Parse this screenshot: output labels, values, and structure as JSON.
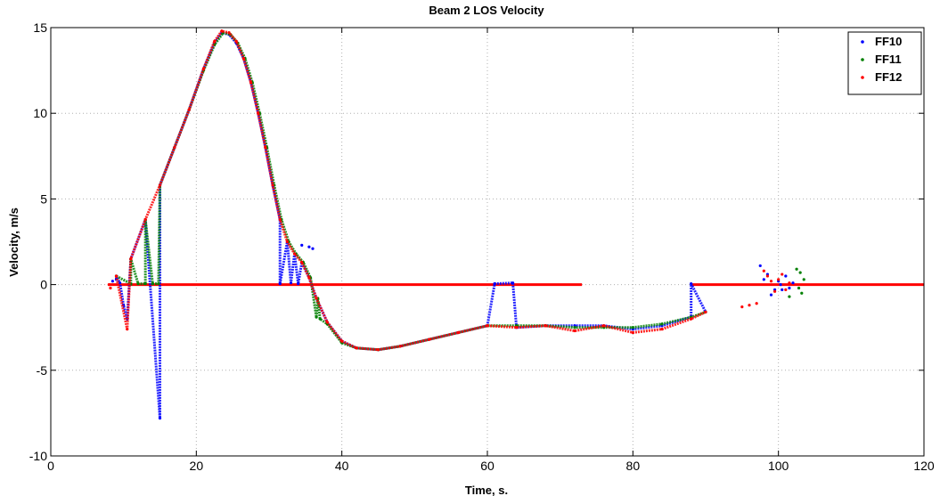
{
  "chart_data": {
    "type": "scatter",
    "title": "Beam 2 LOS Velocity",
    "xlabel": "Time, s.",
    "ylabel": "Velocity, m/s",
    "xlim": [
      0,
      120
    ],
    "ylim": [
      -10,
      15
    ],
    "xticks": [
      0,
      20,
      40,
      60,
      80,
      100,
      120
    ],
    "yticks": [
      -10,
      -5,
      0,
      5,
      10,
      15
    ],
    "grid": true,
    "legend_position": "top-right",
    "series": [
      {
        "name": "FF10",
        "color": "#0000ff",
        "points": [
          [
            8.5,
            0.2
          ],
          [
            9.0,
            0.3
          ],
          [
            9.5,
            0.1
          ],
          [
            10.0,
            -1.2
          ],
          [
            10.5,
            -2.0
          ],
          [
            15.0,
            -7.8
          ],
          [
            9.0,
            0.5
          ],
          [
            11.0,
            1.5
          ],
          [
            13.0,
            3.8
          ],
          [
            15.0,
            5.8
          ],
          [
            17.0,
            8.0
          ],
          [
            19.0,
            10.2
          ],
          [
            21.0,
            12.6
          ],
          [
            22.5,
            14.1
          ],
          [
            23.5,
            14.7
          ],
          [
            24.5,
            14.6
          ],
          [
            25.5,
            14.1
          ],
          [
            26.5,
            13.2
          ],
          [
            27.5,
            11.8
          ],
          [
            28.5,
            10.0
          ],
          [
            29.5,
            8.0
          ],
          [
            30.5,
            5.8
          ],
          [
            31.5,
            3.8
          ],
          [
            32.5,
            2.5
          ],
          [
            33.5,
            1.8
          ],
          [
            34.5,
            1.3
          ],
          [
            35.5,
            0.4
          ],
          [
            36.5,
            -0.8
          ],
          [
            38.0,
            -2.2
          ],
          [
            40.0,
            -3.3
          ],
          [
            42.0,
            -3.7
          ],
          [
            45.0,
            -3.8
          ],
          [
            48.0,
            -3.6
          ],
          [
            52.0,
            -3.2
          ],
          [
            56.0,
            -2.8
          ],
          [
            60.0,
            -2.4
          ],
          [
            64.0,
            -2.5
          ],
          [
            68.0,
            -2.4
          ],
          [
            72.0,
            -2.4
          ],
          [
            76.0,
            -2.4
          ],
          [
            80.0,
            -2.6
          ],
          [
            84.0,
            -2.4
          ],
          [
            88.0,
            -1.9
          ],
          [
            90.0,
            -1.6
          ],
          [
            34.5,
            2.3
          ],
          [
            35.5,
            2.2
          ],
          [
            36.0,
            2.1
          ],
          [
            31.5,
            0.05
          ],
          [
            33.0,
            0.1
          ],
          [
            34.0,
            0.05
          ],
          [
            61.0,
            0.05
          ],
          [
            63.5,
            0.1
          ],
          [
            88.0,
            0.05
          ],
          [
            97.5,
            1.1
          ],
          [
            98.5,
            0.6
          ],
          [
            99.5,
            -0.3
          ],
          [
            100.0,
            0.2
          ],
          [
            100.5,
            -0.3
          ],
          [
            101.0,
            0.5
          ],
          [
            101.5,
            -0.2
          ],
          [
            102.0,
            0.1
          ],
          [
            98.0,
            0.3
          ],
          [
            99.0,
            -0.6
          ],
          [
            100.3,
            0.0
          ]
        ]
      },
      {
        "name": "FF11",
        "color": "#008000",
        "points": [
          [
            11.0,
            0.05
          ],
          [
            12.0,
            0.05
          ],
          [
            13.0,
            0.05
          ],
          [
            14.0,
            0.05
          ],
          [
            14.8,
            0.05
          ],
          [
            9.0,
            0.5
          ],
          [
            11.0,
            1.5
          ],
          [
            13.0,
            3.8
          ],
          [
            15.0,
            5.8
          ],
          [
            17.0,
            8.0
          ],
          [
            19.0,
            10.2
          ],
          [
            21.0,
            12.5
          ],
          [
            22.5,
            14.0
          ],
          [
            23.7,
            14.7
          ],
          [
            24.7,
            14.6
          ],
          [
            25.7,
            14.1
          ],
          [
            26.7,
            13.2
          ],
          [
            27.7,
            11.8
          ],
          [
            28.7,
            10.0
          ],
          [
            29.7,
            8.0
          ],
          [
            30.7,
            5.8
          ],
          [
            31.7,
            3.8
          ],
          [
            32.7,
            2.5
          ],
          [
            33.7,
            1.8
          ],
          [
            34.7,
            1.3
          ],
          [
            35.7,
            0.4
          ],
          [
            36.7,
            -0.8
          ],
          [
            38.0,
            -2.3
          ],
          [
            40.0,
            -3.4
          ],
          [
            42.0,
            -3.7
          ],
          [
            45.0,
            -3.8
          ],
          [
            48.0,
            -3.6
          ],
          [
            52.0,
            -3.2
          ],
          [
            56.0,
            -2.8
          ],
          [
            60.0,
            -2.4
          ],
          [
            64.0,
            -2.4
          ],
          [
            68.0,
            -2.4
          ],
          [
            72.0,
            -2.5
          ],
          [
            76.0,
            -2.5
          ],
          [
            80.0,
            -2.5
          ],
          [
            84.0,
            -2.3
          ],
          [
            88.0,
            -1.9
          ],
          [
            90.0,
            -1.6
          ],
          [
            36.5,
            -1.9
          ],
          [
            37.0,
            -2.0
          ],
          [
            102.5,
            0.9
          ],
          [
            103.0,
            0.7
          ],
          [
            103.2,
            -0.5
          ],
          [
            102.8,
            -0.2
          ],
          [
            103.5,
            0.3
          ],
          [
            101.5,
            -0.7
          ]
        ]
      },
      {
        "name": "FF12",
        "color": "#ff0000",
        "points": [
          [
            8.0,
            0.0
          ],
          [
            8.2,
            -0.2
          ],
          [
            10.5,
            -2.6
          ],
          [
            9.0,
            0.5
          ],
          [
            11.0,
            1.5
          ],
          [
            13.0,
            3.8
          ],
          [
            15.0,
            5.8
          ],
          [
            17.0,
            8.0
          ],
          [
            19.0,
            10.2
          ],
          [
            21.0,
            12.6
          ],
          [
            22.5,
            14.2
          ],
          [
            23.5,
            14.8
          ],
          [
            24.5,
            14.7
          ],
          [
            25.5,
            14.2
          ],
          [
            26.5,
            13.2
          ],
          [
            27.5,
            11.8
          ],
          [
            28.5,
            10.0
          ],
          [
            29.5,
            8.0
          ],
          [
            30.5,
            5.8
          ],
          [
            31.5,
            3.8
          ],
          [
            32.5,
            2.5
          ],
          [
            33.5,
            1.8
          ],
          [
            34.5,
            1.3
          ],
          [
            35.5,
            0.4
          ],
          [
            36.5,
            -0.8
          ],
          [
            38.0,
            -2.2
          ],
          [
            40.0,
            -3.3
          ],
          [
            42.0,
            -3.7
          ],
          [
            45.0,
            -3.8
          ],
          [
            48.0,
            -3.6
          ],
          [
            52.0,
            -3.2
          ],
          [
            56.0,
            -2.8
          ],
          [
            60.0,
            -2.4
          ],
          [
            64.0,
            -2.5
          ],
          [
            68.0,
            -2.4
          ],
          [
            72.0,
            -2.7
          ],
          [
            76.0,
            -2.4
          ],
          [
            80.0,
            -2.8
          ],
          [
            84.0,
            -2.6
          ],
          [
            88.0,
            -2.0
          ],
          [
            90.0,
            -1.6
          ],
          [
            95.0,
            -1.3
          ],
          [
            96.0,
            -1.2
          ],
          [
            97.0,
            -1.1
          ],
          [
            98.0,
            0.8
          ],
          [
            98.5,
            0.5
          ],
          [
            99.0,
            0.2
          ],
          [
            99.5,
            -0.4
          ],
          [
            100.0,
            0.3
          ],
          [
            100.5,
            0.6
          ],
          [
            101.0,
            -0.3
          ],
          [
            101.5,
            0.1
          ]
        ]
      }
    ],
    "zero_lines": [
      {
        "series": "FF12",
        "x": [
          8.0,
          73.0
        ]
      },
      {
        "series": "FF12",
        "x": [
          88.0,
          120.0
        ]
      }
    ]
  }
}
